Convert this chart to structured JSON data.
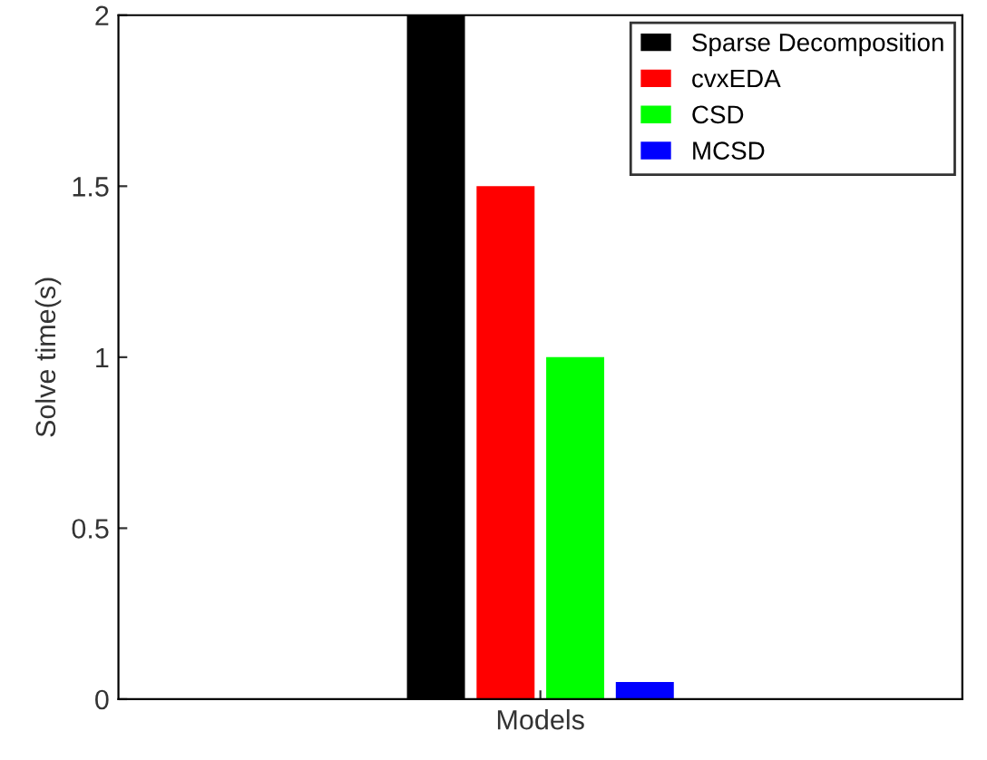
{
  "chart_data": {
    "type": "bar",
    "xlabel": "Models",
    "ylabel": "Solve time(s)",
    "categories": [
      null
    ],
    "series": [
      {
        "name": "Sparse Decomposition",
        "color": "#000000",
        "values": [
          2
        ]
      },
      {
        "name": "cvxEDA",
        "color": "#ff0000",
        "values": [
          1.5
        ]
      },
      {
        "name": "CSD",
        "color": "#00ff00",
        "values": [
          1.0
        ]
      },
      {
        "name": "MCSD",
        "color": "#0000ff",
        "values": [
          0.05
        ]
      }
    ],
    "ylim": [
      0,
      2
    ],
    "yticks": [
      0,
      0.5,
      1,
      1.5,
      2
    ],
    "tick_labels": "y",
    "legend": "top right",
    "grid": false
  }
}
